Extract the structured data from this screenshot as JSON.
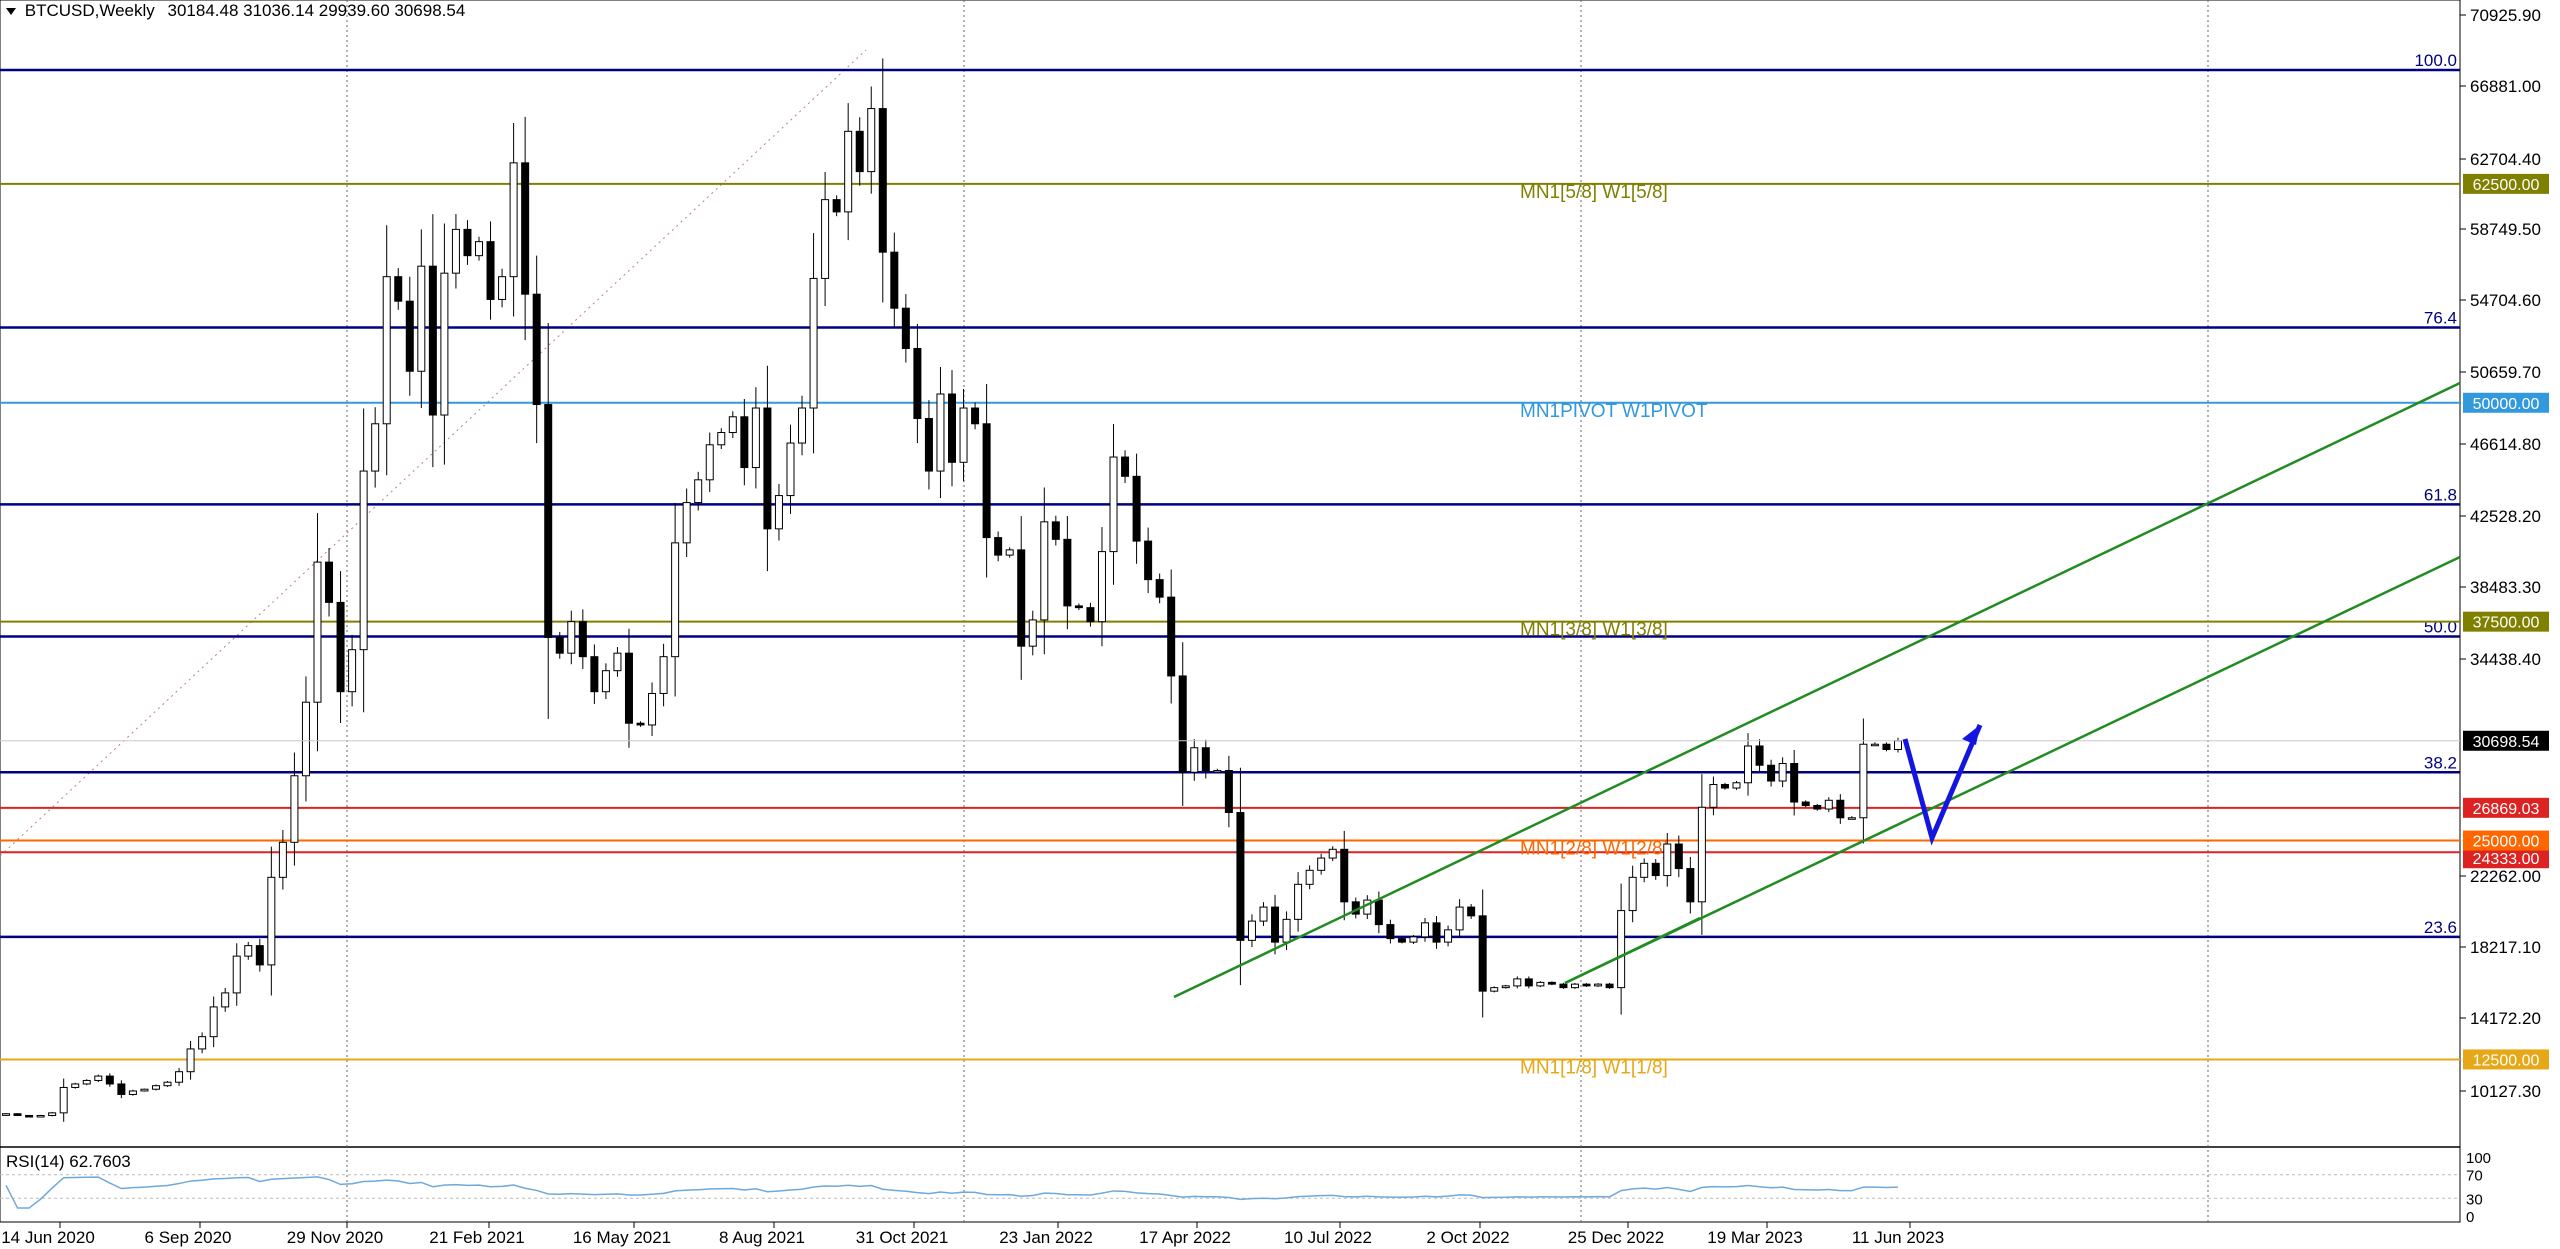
{
  "header": {
    "symbol": "BTCUSD,Weekly",
    "ohlc": "30184.48 31036.14 29939.60 30698.54"
  },
  "colors": {
    "navy": "#000080",
    "olive": "#808000",
    "blue_pivot": "#3399dd",
    "red": "#dd2222",
    "orange": "#ff6600",
    "gold": "#e6a817",
    "green": "#228b22",
    "arrow": "#1515e0",
    "rsi": "#6fa8dc"
  },
  "chart_data": {
    "type": "candlestick",
    "symbol": "BTCUSD",
    "timeframe": "Weekly",
    "ylim": [
      7500,
      73000
    ],
    "y_ticks": [
      "70925.90",
      "66881.00",
      "62704.40",
      "58749.50",
      "54704.60",
      "50659.70",
      "46614.80",
      "42528.20",
      "38483.30",
      "34438.40",
      "30698.54",
      "26869.03",
      "25000.00",
      "24333.00",
      "22262.00",
      "18217.10",
      "14172.20",
      "12500.00",
      "10127.30"
    ],
    "x_ticks": [
      "14 Jun 2020",
      "6 Sep 2020",
      "29 Nov 2020",
      "21 Feb 2021",
      "16 May 2021",
      "8 Aug 2021",
      "31 Oct 2021",
      "23 Jan 2022",
      "17 Apr 2022",
      "10 Jul 2022",
      "2 Oct 2022",
      "25 Dec 2022",
      "19 Mar 2023",
      "11 Jun 2023"
    ],
    "fib_levels": [
      {
        "label": "100.0",
        "price": 69000
      },
      {
        "label": "76.4",
        "price": 54300
      },
      {
        "label": "61.8",
        "price": 44200
      },
      {
        "label": "50.0",
        "price": 36650
      },
      {
        "label": "38.2",
        "price": 28900
      },
      {
        "label": "23.6",
        "price": 19500
      }
    ],
    "murrey_levels": [
      {
        "label": "MN1[5/8] W1[5/8]",
        "price": 62500,
        "price_label": "62500.00",
        "color": "olive"
      },
      {
        "label": "MN1PIVOT W1PIVOT",
        "price": 50000,
        "price_label": "50000.00",
        "color": "blue_pivot"
      },
      {
        "label": "MN1[3/8] W1[3/8]",
        "price": 37500,
        "price_label": "37500.00",
        "color": "olive"
      },
      {
        "label": "MN1[2/8] W1[2/8]",
        "price": 25000,
        "price_label": "25000.00",
        "color": "orange"
      },
      {
        "label": "MN1[1/8] W1[1/8]",
        "price": 12500,
        "price_label": "12500.00",
        "color": "gold"
      }
    ],
    "red_levels": [
      {
        "price": 26869.03,
        "price_label": "26869.03"
      },
      {
        "price": 24333.0,
        "price_label": "24333.00"
      }
    ],
    "last_price": {
      "value": 30698.54,
      "label": "30698.54"
    },
    "closes": [
      9400,
      9300,
      9250,
      9300,
      9450,
      10900,
      11100,
      11300,
      11550,
      11100,
      10500,
      10700,
      10800,
      11000,
      11200,
      11800,
      13100,
      13800,
      15500,
      16300,
      18400,
      19000,
      17900,
      22900,
      24900,
      28700,
      32900,
      40900,
      38600,
      33500,
      35900,
      46100,
      48800,
      57200,
      55800,
      51800,
      57800,
      49300,
      57400,
      59900,
      58400,
      59200,
      55900,
      57200,
      63700,
      56200,
      49900,
      36600,
      35700,
      37500,
      35500,
      33500,
      34700,
      35700,
      31700,
      31600,
      33400,
      35500,
      42000,
      44300,
      45600,
      47600,
      48300,
      49200,
      46300,
      49700,
      42800,
      44700,
      47700,
      49700,
      57100,
      61600,
      60900,
      65500,
      63200,
      66800,
      58600,
      55400,
      53100,
      49100,
      46100,
      50500,
      46600,
      49700,
      48800,
      42300,
      41300,
      41600,
      36100,
      37600,
      43200,
      42200,
      38400,
      38300,
      37500,
      41500,
      46900,
      45800,
      42100,
      39900,
      38900,
      34400,
      28900,
      30300,
      29000,
      29000,
      26600,
      19300,
      20400,
      21200,
      19200,
      20500,
      22500,
      23300,
      24000,
      24500,
      21500,
      20800,
      21600,
      20200,
      19400,
      19200,
      19500,
      20300,
      19200,
      19900,
      21200,
      20700,
      16400,
      16600,
      16700,
      17100,
      16700,
      16900,
      16800,
      16600,
      16800,
      16700,
      16800,
      16600,
      21000,
      22900,
      23700,
      23000,
      24800,
      23400,
      21500,
      26900,
      28200,
      28000,
      28300,
      30400,
      29300,
      28400,
      29400,
      27200,
      27000,
      26800,
      27300,
      26300,
      26300,
      30500,
      30500,
      30200,
      30698.54
    ],
    "channel_upper": [
      [
        1174,
        997
      ],
      [
        2460,
        383
      ]
    ],
    "channel_mid": [
      [
        1565,
        983
      ],
      [
        2460,
        557
      ]
    ],
    "arrow_path": [
      [
        1905,
        739
      ],
      [
        1932,
        838
      ],
      [
        1980,
        725
      ]
    ],
    "ath_diag": [
      [
        0,
        856
      ],
      [
        866,
        50
      ]
    ],
    "rsi": {
      "label": "RSI(14) 62.7603",
      "levels": [
        "100",
        "70",
        "30",
        "0"
      ]
    }
  }
}
